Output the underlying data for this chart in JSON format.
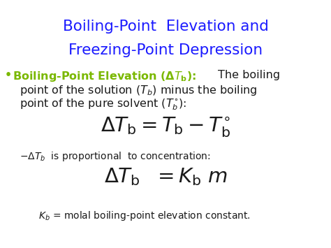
{
  "title_line1": "Boiling-Point  Elevation and",
  "title_line2": "Freezing-Point Depression",
  "title_color": "#1a1aff",
  "bullet_green": "#7ab800",
  "text_black": "#1a1a1a",
  "background": "#ffffff",
  "figsize": [
    4.74,
    3.55
  ],
  "dpi": 100
}
